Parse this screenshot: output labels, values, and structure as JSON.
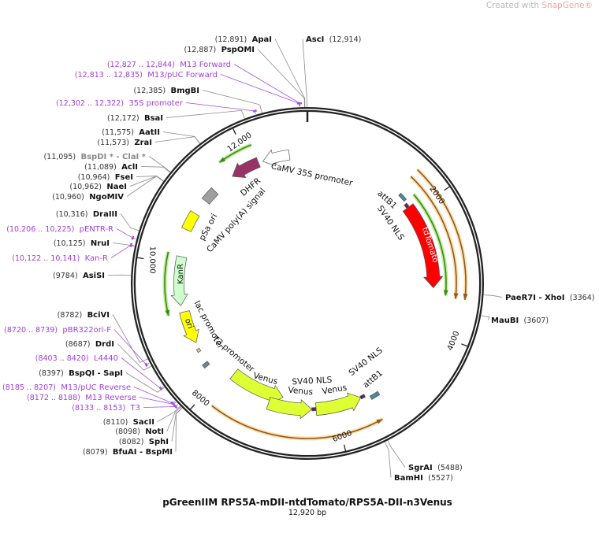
{
  "watermark": {
    "prefix": "Created with ",
    "brand": "SnapGene®"
  },
  "plasmid": {
    "name": "pGreenIIM RPS5A-mDII-ntdTomato/RPS5A-DII-n3Venus",
    "length_bp": 12920,
    "length_label": "12,920 bp"
  },
  "colors": {
    "backbone": "#222222",
    "enzyme": "#111111",
    "primer": "#a040e0",
    "nonunique": "#8a8a8a",
    "orange_arc": "#f0a030",
    "orf_green": "#3a8a10"
  },
  "ticks": [
    {
      "bp": 2000,
      "label": "2000"
    },
    {
      "bp": 4000,
      "label": "4000"
    },
    {
      "bp": 6000,
      "label": "6000"
    },
    {
      "bp": 8000,
      "label": "8000"
    },
    {
      "bp": 10000,
      "label": "10,000"
    },
    {
      "bp": 12000,
      "label": "12,000"
    }
  ],
  "sites": [
    {
      "name": "ApaI",
      "location": "(12,891)",
      "bp": 12891,
      "kind": "enzyme"
    },
    {
      "name": "PspOMI",
      "location": "(12,887)",
      "bp": 12887,
      "kind": "enzyme"
    },
    {
      "name": "M13 Forward",
      "location": "(12,827 .. 12,844)",
      "bp": 12835,
      "kind": "primer"
    },
    {
      "name": "M13/pUC Forward",
      "location": "(12,813 .. 12,835)",
      "bp": 12824,
      "kind": "primer"
    },
    {
      "name": "BmgBI",
      "location": "(12,385)",
      "bp": 12385,
      "kind": "enzyme"
    },
    {
      "name": "35S promoter",
      "location": "(12,302 .. 12,322)",
      "bp": 12312,
      "kind": "primer"
    },
    {
      "name": "BsaI",
      "location": "(12,172)",
      "bp": 12172,
      "kind": "enzyme"
    },
    {
      "name": "AatII",
      "location": "(11,575)",
      "bp": 11575,
      "kind": "enzyme"
    },
    {
      "name": "ZraI",
      "location": "(11,573)",
      "bp": 11573,
      "kind": "enzyme"
    },
    {
      "name": "BspDI * - ClaI *",
      "location": "(11,095)",
      "bp": 11095,
      "kind": "nonunique"
    },
    {
      "name": "AclI",
      "location": "(11,089)",
      "bp": 11089,
      "kind": "enzyme"
    },
    {
      "name": "FseI",
      "location": "(10,964)",
      "bp": 10964,
      "kind": "enzyme"
    },
    {
      "name": "NaeI",
      "location": "(10,962)",
      "bp": 10962,
      "kind": "enzyme"
    },
    {
      "name": "NgoMIV",
      "location": "(10,960)",
      "bp": 10960,
      "kind": "enzyme"
    },
    {
      "name": "DraIII",
      "location": "(10,316)",
      "bp": 10316,
      "kind": "enzyme"
    },
    {
      "name": "pENTR-R",
      "location": "(10,206 .. 10,225)",
      "bp": 10215,
      "kind": "primer"
    },
    {
      "name": "NruI",
      "location": "(10,125)",
      "bp": 10125,
      "kind": "enzyme"
    },
    {
      "name": "Kan-R",
      "location": "(10,122 .. 10,141)",
      "bp": 10131,
      "kind": "primer"
    },
    {
      "name": "AsiSI",
      "location": "(9784)",
      "bp": 9784,
      "kind": "enzyme"
    },
    {
      "name": "BciVI",
      "location": "(8782)",
      "bp": 8782,
      "kind": "enzyme"
    },
    {
      "name": "pBR322ori-F",
      "location": "(8720 .. 8739)",
      "bp": 8729,
      "kind": "primer"
    },
    {
      "name": "DrdI",
      "location": "(8687)",
      "bp": 8687,
      "kind": "enzyme"
    },
    {
      "name": "L4440",
      "location": "(8403 .. 8420)",
      "bp": 8411,
      "kind": "primer"
    },
    {
      "name": "BspQI  - SapI",
      "location": "(8397)",
      "bp": 8397,
      "kind": "enzyme"
    },
    {
      "name": "M13/pUC Reverse",
      "location": "(8185 .. 8207)",
      "bp": 8196,
      "kind": "primer"
    },
    {
      "name": "M13 Reverse",
      "location": "(8172 .. 8188)",
      "bp": 8180,
      "kind": "primer"
    },
    {
      "name": "T3",
      "location": "(8133 .. 8153)",
      "bp": 8143,
      "kind": "primer"
    },
    {
      "name": "SacII",
      "location": "(8110)",
      "bp": 8110,
      "kind": "enzyme"
    },
    {
      "name": "NotI",
      "location": "(8098)",
      "bp": 8098,
      "kind": "enzyme"
    },
    {
      "name": "SphI",
      "location": "(8082)",
      "bp": 8082,
      "kind": "enzyme"
    },
    {
      "name": "BfuAI  - BspMI",
      "location": "(8079)",
      "bp": 8079,
      "kind": "enzyme"
    },
    {
      "name": "AscI",
      "location": "(12,914)",
      "bp": 12914,
      "kind": "enzyme"
    },
    {
      "name": "PaeR7I  - XhoI",
      "location": "(3364)",
      "bp": 3364,
      "kind": "enzyme"
    },
    {
      "name": "MauBI",
      "location": "(3607)",
      "bp": 3607,
      "kind": "enzyme"
    },
    {
      "name": "SgrAI",
      "location": "(5488)",
      "bp": 5488,
      "kind": "enzyme"
    },
    {
      "name": "BamHI",
      "location": "(5527)",
      "bp": 5527,
      "kind": "enzyme"
    }
  ],
  "features": [
    {
      "name": "CaMV 35S promoter",
      "start": 12202,
      "end": 12633,
      "direction": "reverse",
      "color": "#ffffff"
    },
    {
      "name": "DHFR",
      "start": 11664,
      "end": 12130,
      "direction": "reverse",
      "color": "#993366"
    },
    {
      "name": "pSa ori",
      "start": 11090,
      "end": 11305,
      "direction": "none",
      "color": "#a0a0a0"
    },
    {
      "name": "CaMV poly(A) signal",
      "start": 10551,
      "end": 10838,
      "direction": "none",
      "color": "#ffff00"
    },
    {
      "name": "KanR",
      "start": 9331,
      "end": 10120,
      "direction": "reverse",
      "color": "#ccffcc"
    },
    {
      "name": "ori",
      "start": 8685,
      "end": 9223,
      "direction": "reverse",
      "color": "#ffff00"
    },
    {
      "name": "lac promoter",
      "start": 8530,
      "end": 8580,
      "direction": "none",
      "color": "#e0c8a0"
    },
    {
      "name": "T3 promoter",
      "start": 8270,
      "end": 8330,
      "direction": "none",
      "color": "#6a8a8a"
    },
    {
      "name": "Venus",
      "start": 6891,
      "end": 7860,
      "direction": "reverse",
      "color": "#ddff33"
    },
    {
      "name": "Venus",
      "start": 6388,
      "end": 7106,
      "direction": "reverse",
      "color": "#ddff33"
    },
    {
      "name": "SV40 NLS",
      "start": 6317,
      "end": 6388,
      "direction": "none",
      "color": "#662255"
    },
    {
      "name": "Venus",
      "start": 5563,
      "end": 6317,
      "direction": "reverse",
      "color": "#ddff33"
    },
    {
      "name": "SV40 NLS",
      "start": 5491,
      "end": 5563,
      "direction": "none",
      "color": "#662255"
    },
    {
      "name": "attB1",
      "start": 5276,
      "end": 5420,
      "direction": "none",
      "color": "#4a8a99"
    },
    {
      "name": "attB1",
      "start": 1650,
      "end": 1780,
      "direction": "none",
      "color": "#4a8a99"
    },
    {
      "name": "SV40 NLS",
      "start": 1830,
      "end": 1900,
      "direction": "none",
      "color": "#662255"
    },
    {
      "name": "tdTomato",
      "start": 1900,
      "end": 3302,
      "direction": "forward",
      "color": "#ff0000"
    }
  ],
  "arcs": [
    {
      "start": 11628,
      "end": 12130,
      "direction": "reverse",
      "kind": "orf"
    },
    {
      "start": 9220,
      "end": 10150,
      "direction": "reverse",
      "kind": "orf"
    },
    {
      "start": 1795,
      "end": 3410,
      "direction": "forward",
      "kind": "orf"
    },
    {
      "start": 1579,
      "end": 3445,
      "direction": "forward",
      "kind": "orange"
    },
    {
      "start": 1579,
      "end": 3445,
      "direction": "forward",
      "kind": "orange"
    },
    {
      "start": 5420,
      "end": 7824,
      "direction": "reverse",
      "kind": "orange"
    }
  ]
}
